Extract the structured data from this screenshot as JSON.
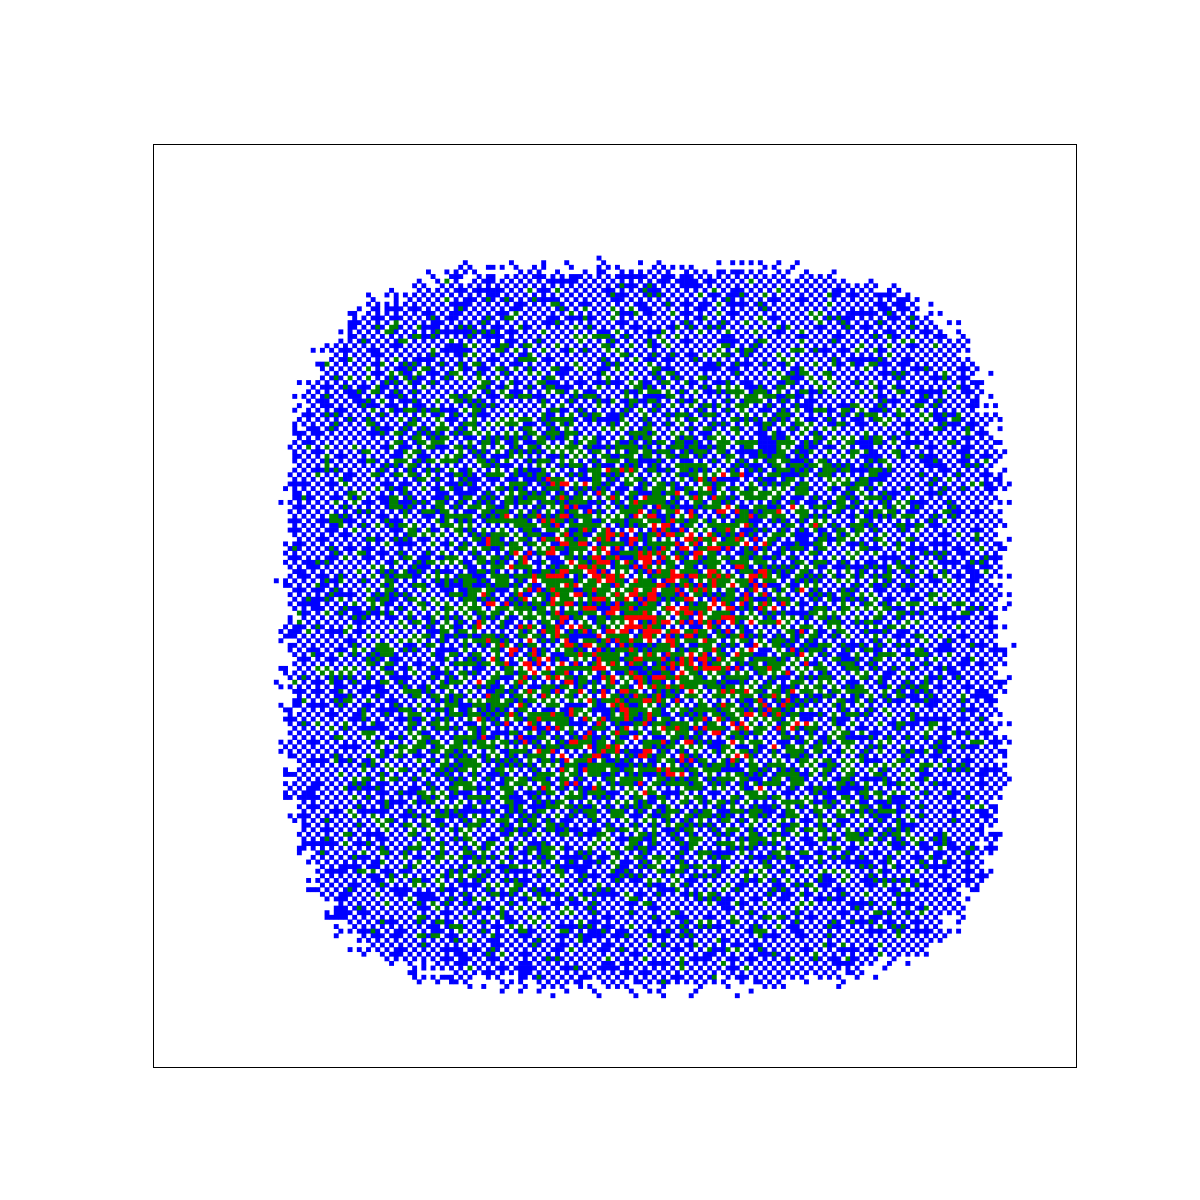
{
  "chart_data": {
    "type": "heatmap",
    "title": "",
    "xlabel": "",
    "ylabel": "",
    "axes": {
      "ticks": false,
      "grid": false,
      "frame": true
    },
    "grid": {
      "rows": 200,
      "cols": 200,
      "occupied_region": {
        "shape": "rounded-square",
        "center_col": 106,
        "center_row": 104,
        "half_width_cols": 78,
        "half_height_rows": 78
      }
    },
    "series": [
      {
        "state": "outer",
        "color": "#0000ff",
        "approx_share": 0.55,
        "location": "outer ring"
      },
      {
        "state": "middle",
        "color": "#008000",
        "approx_share": 0.38,
        "location": "interior"
      },
      {
        "state": "inner",
        "color": "#ff0000",
        "approx_share": 0.07,
        "location": "core"
      }
    ],
    "background_color": "#ffffff"
  }
}
